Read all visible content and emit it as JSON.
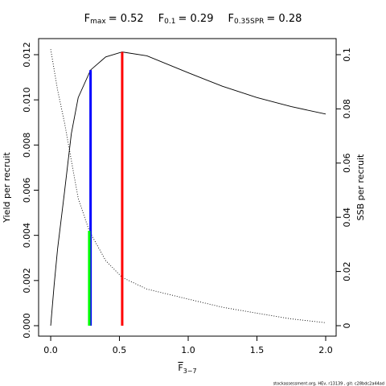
{
  "chart_data": {
    "type": "line",
    "title": [
      {
        "name": "F",
        "sub": "max",
        "label": "= 0.52"
      },
      {
        "name": "F",
        "sub": "0.1",
        "label": "= 0.29"
      },
      {
        "name": "F",
        "sub": "0.35SPR",
        "label": "= 0.28"
      }
    ],
    "xlabel": {
      "name": "F",
      "sub": "3−7"
    },
    "ylabel": "Yield per recruit",
    "y2label": "SSB per recruit",
    "footer": "stockassessment.org, HEv, r13139 , git: c28bdc2a44ad",
    "xlim": [
      -0.088,
      2.076
    ],
    "ylim": [
      -0.000463,
      0.012712
    ],
    "y2lim": [
      -0.00386,
      0.10593
    ],
    "xticks": [
      {
        "value": 0,
        "label": "0.0"
      },
      {
        "value": 0.5,
        "label": "0.5"
      },
      {
        "value": 1,
        "label": "1.0"
      },
      {
        "value": 1.5,
        "label": "1.5"
      },
      {
        "value": 2,
        "label": "2.0"
      }
    ],
    "yticks": [
      {
        "value": 0,
        "label": "0.000"
      },
      {
        "value": 0.002,
        "label": "0.002"
      },
      {
        "value": 0.004,
        "label": "0.004"
      },
      {
        "value": 0.006,
        "label": "0.006"
      },
      {
        "value": 0.008,
        "label": "0.008"
      },
      {
        "value": 0.01,
        "label": "0.010"
      },
      {
        "value": 0.012,
        "label": "0.012"
      }
    ],
    "y2ticks": [
      0,
      0.02,
      0.04,
      0.06,
      0.08,
      0.1
    ],
    "series": [
      {
        "name": "Yield per recruit",
        "color": "#000000",
        "dash": "solid",
        "x": [
          0,
          0.025,
          0.05,
          0.1,
          0.15,
          0.2,
          0.29,
          0.4,
          0.52,
          0.7,
          1.0,
          1.25,
          1.5,
          1.75,
          2.0
        ],
        "values": [
          0,
          0.0018,
          0.0034,
          0.0059,
          0.0085,
          0.0101,
          0.01132,
          0.0119,
          0.01212,
          0.01195,
          0.0112,
          0.0106,
          0.0101,
          0.0097,
          0.00937
        ]
      },
      {
        "name": "SSB per recruit",
        "color": "#000000",
        "dash": "dotted",
        "axis": "y2",
        "x": [
          0,
          0.05,
          0.1,
          0.15,
          0.2,
          0.28,
          0.4,
          0.52,
          0.7,
          1.0,
          1.25,
          1.5,
          1.75,
          2.0
        ],
        "values": [
          0.102,
          0.087,
          0.075,
          0.061,
          0.047,
          0.035,
          0.024,
          0.0178,
          0.0135,
          0.0098,
          0.0068,
          0.0046,
          0.0025,
          0.0011
        ]
      }
    ],
    "reference_lines": [
      {
        "x": 0.52,
        "top": 0.01212,
        "color": "#ff0000"
      },
      {
        "x": 0.29,
        "top": 0.01132,
        "color": "#0000ff"
      },
      {
        "x": 0.28,
        "top": 0.035,
        "axis": "y2",
        "color": "#00ff00"
      }
    ]
  }
}
